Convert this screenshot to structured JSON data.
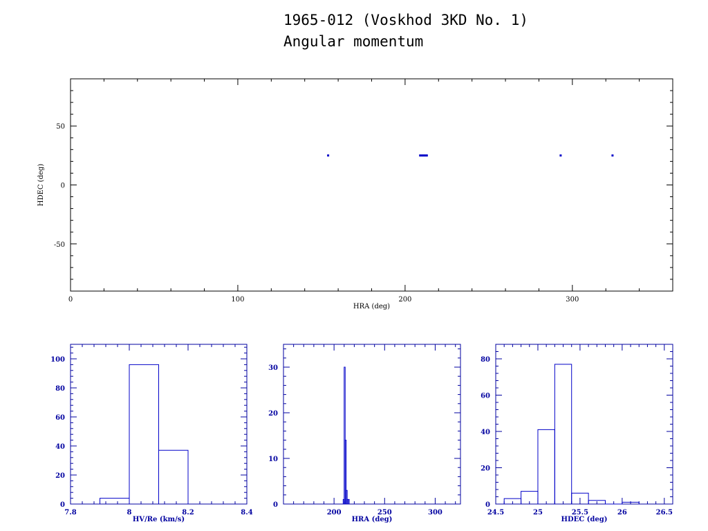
{
  "title": {
    "line1": "1965-012 (Voskhod 3KD No. 1)",
    "line2": "Angular momentum"
  },
  "colors": {
    "top_frame": "#000000",
    "hist_frame": "#0000a0",
    "data": "#0000c8"
  },
  "chart_data": [
    {
      "type": "scatter",
      "xlabel": "HRA (deg)",
      "ylabel": "HDEC (deg)",
      "xlim": [
        0,
        360
      ],
      "ylim": [
        -90,
        90
      ],
      "xticks": [
        0,
        100,
        200,
        300
      ],
      "yticks": [
        -50,
        0,
        50
      ],
      "points": [
        {
          "x": 154,
          "y": 25
        },
        {
          "x": 209,
          "y": 25
        },
        {
          "x": 210,
          "y": 25
        },
        {
          "x": 211,
          "y": 25
        },
        {
          "x": 212,
          "y": 25
        },
        {
          "x": 213,
          "y": 25
        },
        {
          "x": 293,
          "y": 25
        },
        {
          "x": 324,
          "y": 25
        }
      ]
    },
    {
      "type": "histogram",
      "xlabel": "HV/Re (km/s)",
      "ylabel": "",
      "xlim": [
        7.8,
        8.4
      ],
      "ylim": [
        0,
        110
      ],
      "xticks": [
        "7.8",
        "8",
        "8.2",
        "8.4"
      ],
      "yticks": [
        0,
        20,
        40,
        60,
        80,
        100
      ],
      "bins": [
        {
          "x0": 7.9,
          "x1": 8.0,
          "count": 4
        },
        {
          "x0": 8.0,
          "x1": 8.1,
          "count": 96
        },
        {
          "x0": 8.1,
          "x1": 8.2,
          "count": 37
        }
      ]
    },
    {
      "type": "histogram",
      "xlabel": "HRA (deg)",
      "ylabel": "",
      "xlim": [
        150,
        325
      ],
      "ylim": [
        0,
        35
      ],
      "xticks": [
        200,
        250,
        300
      ],
      "yticks": [
        0,
        10,
        20,
        30
      ],
      "bins": [
        {
          "x0": 209,
          "x1": 210,
          "count": 1
        },
        {
          "x0": 210,
          "x1": 211,
          "count": 30
        },
        {
          "x0": 211,
          "x1": 212,
          "count": 14
        },
        {
          "x0": 212,
          "x1": 213,
          "count": 3
        },
        {
          "x0": 213,
          "x1": 214,
          "count": 1
        },
        {
          "x0": 214,
          "x1": 215,
          "count": 1
        }
      ]
    },
    {
      "type": "histogram",
      "xlabel": "HDEC (deg)",
      "ylabel": "",
      "xlim": [
        24.5,
        26.6
      ],
      "ylim": [
        0,
        88
      ],
      "xticks": [
        "24.5",
        "25",
        "25.5",
        "26",
        "26.5"
      ],
      "yticks": [
        0,
        20,
        40,
        60,
        80
      ],
      "bins": [
        {
          "x0": 24.6,
          "x1": 24.8,
          "count": 3
        },
        {
          "x0": 24.8,
          "x1": 25.0,
          "count": 7
        },
        {
          "x0": 25.0,
          "x1": 25.2,
          "count": 41
        },
        {
          "x0": 25.2,
          "x1": 25.4,
          "count": 77
        },
        {
          "x0": 25.4,
          "x1": 25.6,
          "count": 6
        },
        {
          "x0": 25.6,
          "x1": 25.8,
          "count": 2
        },
        {
          "x0": 25.8,
          "x1": 26.0,
          "count": 0
        },
        {
          "x0": 26.0,
          "x1": 26.2,
          "count": 1
        }
      ]
    }
  ]
}
